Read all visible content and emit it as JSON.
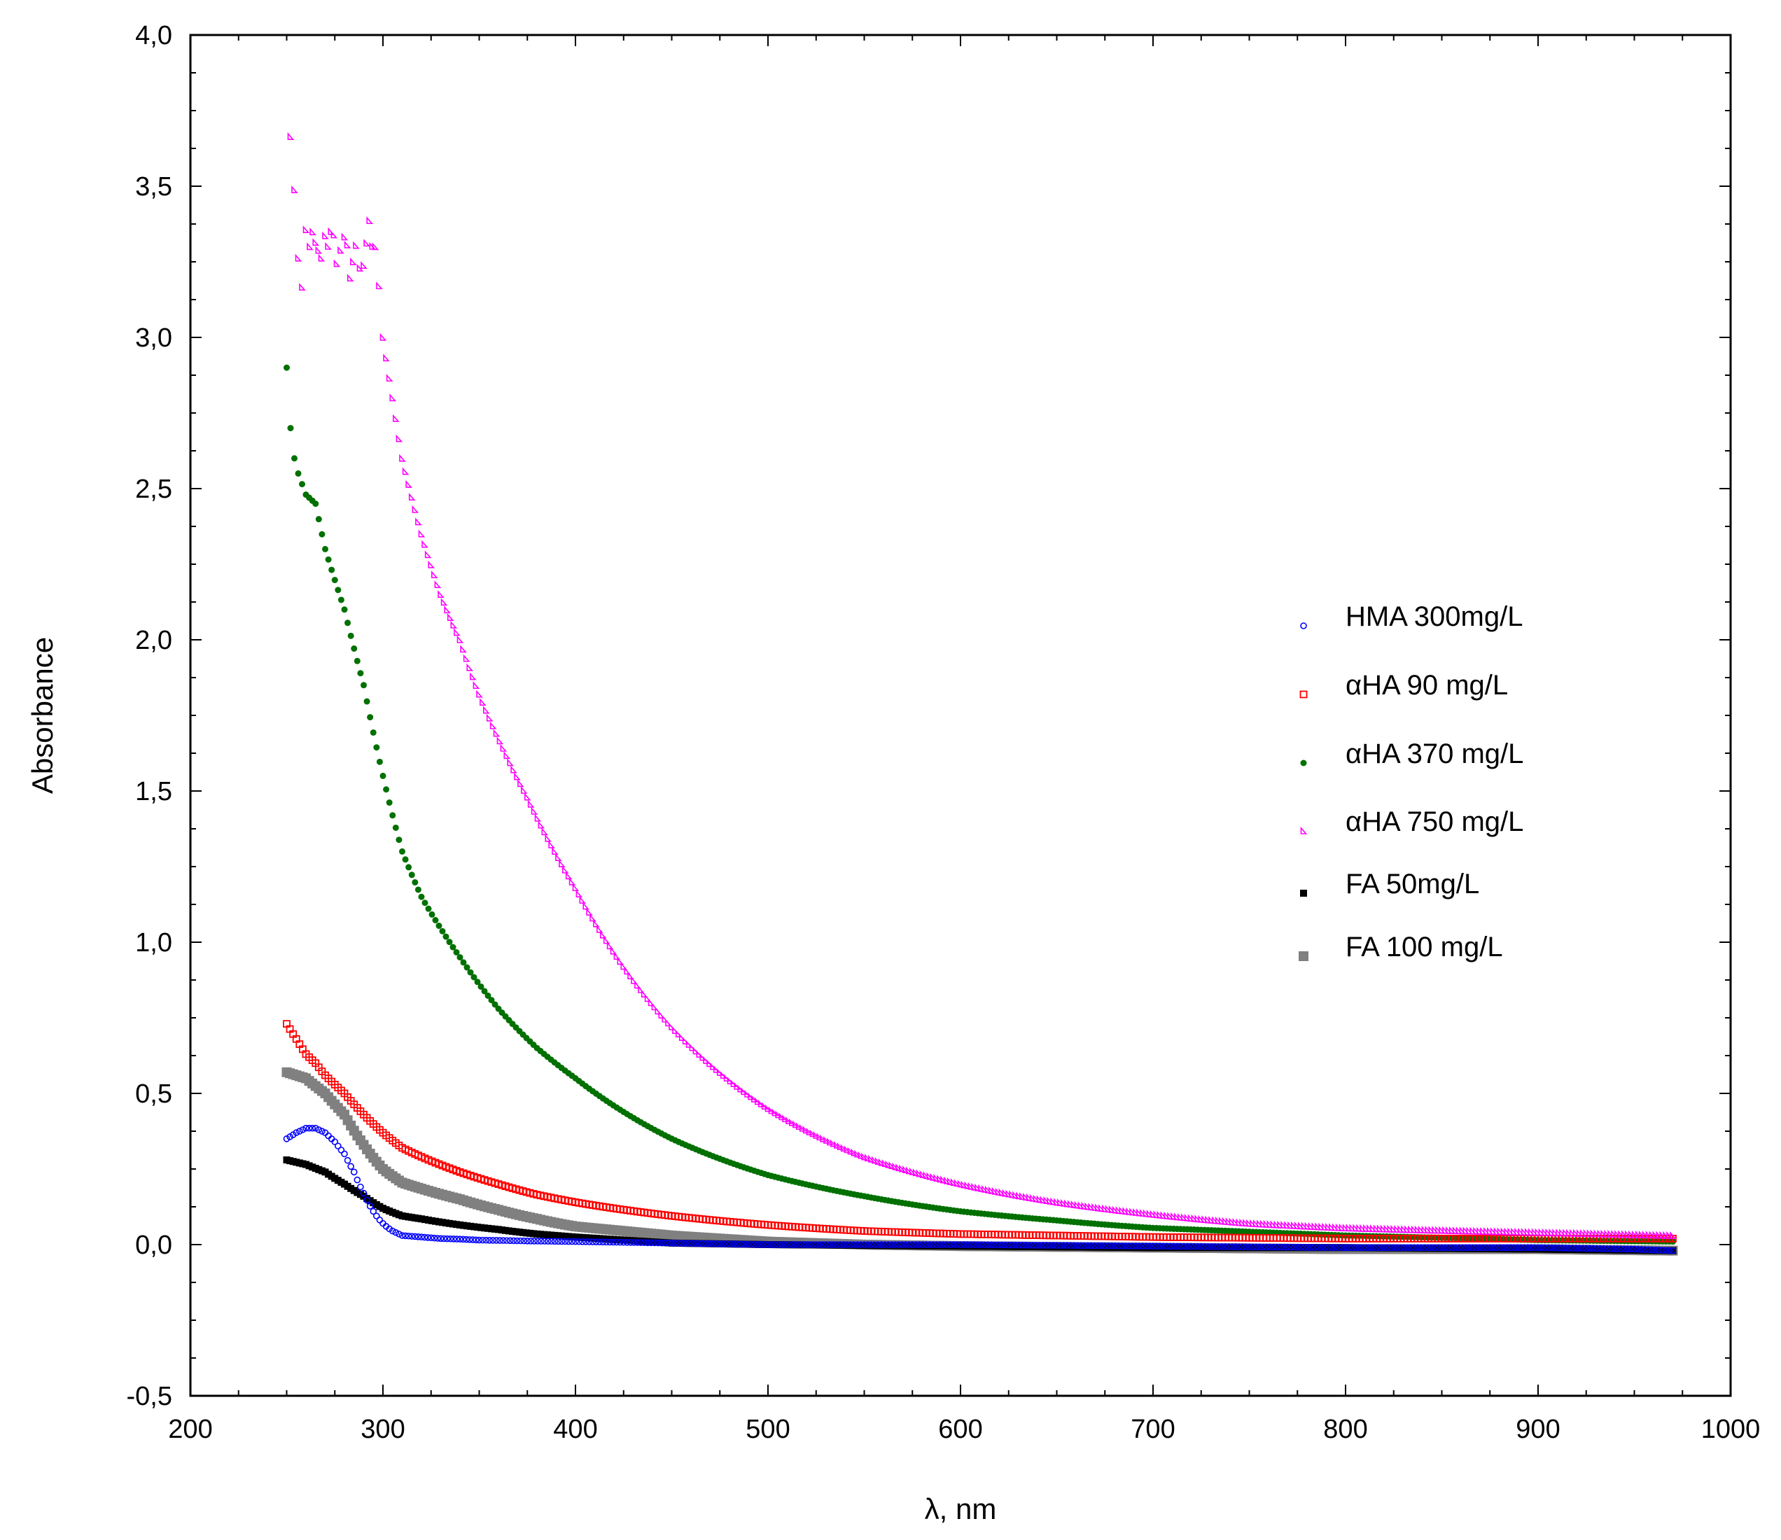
{
  "chart_data": {
    "type": "scatter",
    "title": "",
    "xlabel": "λ, nm",
    "ylabel": "Absorbance",
    "xlim": [
      200,
      1000
    ],
    "ylim": [
      -0.5,
      4.0
    ],
    "x_ticks": [
      200,
      300,
      400,
      500,
      600,
      700,
      800,
      900,
      1000
    ],
    "x_tick_labels": [
      "200",
      "300",
      "400",
      "500",
      "600",
      "700",
      "800",
      "900",
      "1000"
    ],
    "y_ticks": [
      -0.5,
      0.0,
      0.5,
      1.0,
      1.5,
      2.0,
      2.5,
      3.0,
      3.5,
      4.0
    ],
    "y_tick_labels": [
      "-0,5",
      "0,0",
      "0,5",
      "1,0",
      "1,5",
      "2,0",
      "2,5",
      "3,0",
      "3,5",
      "4,0"
    ],
    "grid": false,
    "legend_position": "right-middle",
    "series": [
      {
        "name": "HMA 300mg/L",
        "label": " HMA 300mg/L",
        "color": "#0000ff",
        "marker": "open-circle",
        "x": [
          250,
          255,
          260,
          265,
          270,
          275,
          280,
          285,
          290,
          295,
          300,
          305,
          310,
          320,
          330,
          340,
          350,
          375,
          400,
          450,
          500,
          600,
          700,
          800,
          900,
          950,
          970
        ],
        "y": [
          0.35,
          0.37,
          0.385,
          0.385,
          0.37,
          0.34,
          0.3,
          0.24,
          0.17,
          0.11,
          0.07,
          0.045,
          0.03,
          0.025,
          0.02,
          0.018,
          0.015,
          0.012,
          0.01,
          0.005,
          0.0,
          0.0,
          -0.005,
          -0.01,
          -0.01,
          -0.015,
          -0.02
        ]
      },
      {
        "name": "αHA 90 mg/L",
        "label": "αHA 90 mg/L",
        "color": "#ff0000",
        "marker": "open-square",
        "x": [
          250,
          255,
          260,
          265,
          270,
          280,
          290,
          300,
          310,
          320,
          340,
          360,
          380,
          400,
          450,
          500,
          550,
          600,
          700,
          800,
          900,
          970
        ],
        "y": [
          0.73,
          0.68,
          0.63,
          0.6,
          0.56,
          0.5,
          0.43,
          0.37,
          0.32,
          0.29,
          0.24,
          0.2,
          0.165,
          0.14,
          0.095,
          0.065,
          0.045,
          0.035,
          0.025,
          0.02,
          0.02,
          0.02
        ]
      },
      {
        "name": "αHA 370 mg/L",
        "label": "αHA 370 mg/L",
        "color": "#007000",
        "marker": "filled-circle",
        "x": [
          250,
          252,
          254,
          256,
          260,
          265,
          270,
          280,
          290,
          300,
          310,
          320,
          340,
          360,
          380,
          400,
          450,
          500,
          550,
          600,
          650,
          700,
          800,
          900,
          970
        ],
        "y": [
          2.9,
          2.7,
          2.6,
          2.55,
          2.48,
          2.45,
          2.3,
          2.1,
          1.85,
          1.55,
          1.3,
          1.15,
          0.95,
          0.78,
          0.65,
          0.55,
          0.35,
          0.23,
          0.16,
          0.11,
          0.08,
          0.055,
          0.03,
          0.015,
          0.01
        ]
      },
      {
        "name": "αHA 750 mg/L",
        "label": "αHA 750 mg/L",
        "color": "#ff00ff",
        "marker": "small-triangle",
        "x": [
          252,
          254,
          256,
          258,
          260,
          262,
          265,
          268,
          270,
          273,
          276,
          280,
          283,
          286,
          290,
          293,
          296,
          300,
          305,
          310,
          320,
          330,
          340,
          350,
          375,
          400,
          425,
          450,
          500,
          550,
          600,
          650,
          700,
          750,
          800,
          900,
          970
        ],
        "y": [
          3.7,
          3.5,
          3.25,
          3.13,
          3.38,
          3.3,
          3.35,
          3.25,
          3.3,
          3.35,
          3.28,
          3.32,
          3.22,
          3.28,
          3.25,
          3.35,
          3.3,
          3.0,
          2.8,
          2.6,
          2.35,
          2.15,
          2.0,
          1.82,
          1.48,
          1.18,
          0.92,
          0.72,
          0.45,
          0.29,
          0.2,
          0.14,
          0.1,
          0.07,
          0.055,
          0.04,
          0.03
        ]
      },
      {
        "name": "FA 50mg/L",
        "label": " FA 50mg/L",
        "color": "#000000",
        "marker": "filled-square",
        "x": [
          250,
          260,
          270,
          280,
          290,
          300,
          310,
          320,
          340,
          360,
          380,
          400,
          425,
          450,
          500,
          600,
          700,
          800,
          900,
          970
        ],
        "y": [
          0.28,
          0.265,
          0.24,
          0.2,
          0.16,
          0.12,
          0.095,
          0.085,
          0.065,
          0.05,
          0.035,
          0.025,
          0.015,
          0.005,
          0.0,
          -0.005,
          -0.01,
          -0.01,
          -0.015,
          -0.02
        ]
      },
      {
        "name": "FA 100 mg/L",
        "label": " FA 100 mg/L",
        "color": "#808080",
        "marker": "filled-square-large",
        "x": [
          250,
          260,
          270,
          280,
          290,
          300,
          310,
          320,
          340,
          360,
          380,
          400,
          450,
          500,
          550,
          600,
          700,
          800,
          900,
          970
        ],
        "y": [
          0.57,
          0.55,
          0.5,
          0.43,
          0.33,
          0.25,
          0.205,
          0.185,
          0.15,
          0.115,
          0.085,
          0.06,
          0.03,
          0.01,
          0.0,
          -0.005,
          -0.01,
          -0.015,
          -0.015,
          -0.02
        ]
      }
    ]
  }
}
